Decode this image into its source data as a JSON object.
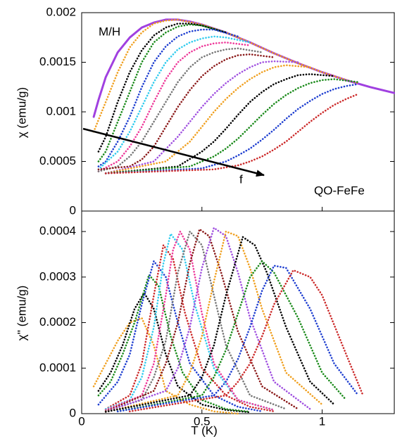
{
  "chart_data": [
    {
      "type": "line",
      "y_label": "χ (emu/g)",
      "annotations": [
        "M/H",
        "QO-FeFe",
        "f"
      ],
      "xlim": [
        0,
        1.3
      ],
      "ylim": [
        0,
        0.002
      ],
      "yticks": [
        0,
        0.0005,
        0.001,
        0.0015,
        0.002
      ],
      "series": [
        {
          "color": "#a040e0",
          "style": "solid",
          "x": [
            0.05,
            0.07,
            0.1,
            0.15,
            0.2,
            0.25,
            0.3,
            0.35,
            0.4,
            0.45,
            0.5,
            0.6,
            0.7,
            0.8,
            0.9,
            1.0,
            1.1,
            1.2,
            1.3
          ],
          "values": [
            0.00095,
            0.00112,
            0.00135,
            0.0016,
            0.00175,
            0.00185,
            0.0019,
            0.00193,
            0.00193,
            0.00191,
            0.00188,
            0.0018,
            0.0017,
            0.00159,
            0.00149,
            0.0014,
            0.00132,
            0.00125,
            0.00119
          ]
        },
        {
          "color": "#f0a020",
          "x": [
            0.05,
            0.1,
            0.15,
            0.2,
            0.25,
            0.3,
            0.35,
            0.4,
            0.5,
            0.6,
            0.7,
            0.8,
            0.9,
            1.0,
            1.1,
            1.15
          ],
          "values": [
            0.0008,
            0.0011,
            0.0014,
            0.00165,
            0.0018,
            0.00189,
            0.00192,
            0.00193,
            0.00188,
            0.0018,
            0.0017,
            0.00159,
            0.00149,
            0.0014,
            0.00132,
            0.00129
          ]
        },
        {
          "color": "#000000",
          "x": [
            0.07,
            0.1,
            0.15,
            0.2,
            0.25,
            0.3,
            0.35,
            0.4,
            0.45,
            0.5,
            0.6
          ],
          "values": [
            0.0006,
            0.00075,
            0.0011,
            0.0014,
            0.00162,
            0.00177,
            0.00185,
            0.00189,
            0.00189,
            0.00187,
            0.0018
          ]
        },
        {
          "color": "#1a8a1a",
          "x": [
            0.07,
            0.1,
            0.15,
            0.2,
            0.25,
            0.3,
            0.35,
            0.4,
            0.45,
            0.5,
            0.6
          ],
          "values": [
            0.0005,
            0.0006,
            0.0009,
            0.0012,
            0.0015,
            0.0017,
            0.0018,
            0.00186,
            0.00188,
            0.00187,
            0.0018
          ]
        },
        {
          "color": "#1f3fd0",
          "x": [
            0.07,
            0.1,
            0.15,
            0.2,
            0.25,
            0.3,
            0.35,
            0.4,
            0.45,
            0.5,
            0.55,
            0.65
          ],
          "values": [
            0.00045,
            0.0005,
            0.0007,
            0.00095,
            0.00125,
            0.0015,
            0.00166,
            0.00176,
            0.00181,
            0.00183,
            0.00183,
            0.00176
          ]
        },
        {
          "color": "#33ccee",
          "x": [
            0.07,
            0.15,
            0.2,
            0.25,
            0.3,
            0.35,
            0.4,
            0.45,
            0.5,
            0.55,
            0.6,
            0.7
          ],
          "values": [
            0.00042,
            0.0006,
            0.0008,
            0.00105,
            0.0013,
            0.0015,
            0.00163,
            0.0017,
            0.00174,
            0.00176,
            0.00175,
            0.0017
          ]
        },
        {
          "color": "#ee3a9a",
          "x": [
            0.07,
            0.15,
            0.2,
            0.25,
            0.3,
            0.35,
            0.4,
            0.45,
            0.5,
            0.55,
            0.6,
            0.7
          ],
          "values": [
            0.0004,
            0.0005,
            0.00065,
            0.00085,
            0.0011,
            0.00133,
            0.0015,
            0.0016,
            0.00166,
            0.00169,
            0.0017,
            0.00167
          ]
        },
        {
          "color": "#777777",
          "x": [
            0.07,
            0.15,
            0.2,
            0.25,
            0.3,
            0.35,
            0.4,
            0.45,
            0.5,
            0.55,
            0.6,
            0.65,
            0.75
          ],
          "values": [
            0.0004,
            0.00045,
            0.00055,
            0.0007,
            0.0009,
            0.0011,
            0.0013,
            0.00145,
            0.00155,
            0.0016,
            0.00163,
            0.00164,
            0.0016
          ]
        },
        {
          "color": "#8b1a1a",
          "x": [
            0.07,
            0.2,
            0.25,
            0.3,
            0.35,
            0.4,
            0.45,
            0.5,
            0.55,
            0.6,
            0.65,
            0.7,
            0.8
          ],
          "values": [
            0.00042,
            0.00045,
            0.00052,
            0.00065,
            0.00085,
            0.00105,
            0.00122,
            0.00136,
            0.00146,
            0.00153,
            0.00157,
            0.00158,
            0.00155
          ]
        },
        {
          "color": "#a050e0",
          "x": [
            0.1,
            0.3,
            0.4,
            0.45,
            0.5,
            0.55,
            0.6,
            0.65,
            0.7,
            0.75,
            0.8,
            0.9
          ],
          "values": [
            0.00038,
            0.0005,
            0.00075,
            0.0009,
            0.00105,
            0.00118,
            0.00129,
            0.00138,
            0.00145,
            0.0015,
            0.00151,
            0.0015
          ]
        },
        {
          "color": "#f0a020",
          "x": [
            0.1,
            0.35,
            0.45,
            0.5,
            0.55,
            0.6,
            0.65,
            0.7,
            0.75,
            0.8,
            0.85,
            0.95
          ],
          "values": [
            0.00038,
            0.0005,
            0.0007,
            0.00085,
            0.001,
            0.00113,
            0.00124,
            0.00133,
            0.0014,
            0.00145,
            0.00147,
            0.00145
          ]
        },
        {
          "color": "#000000",
          "x": [
            0.1,
            0.4,
            0.5,
            0.55,
            0.6,
            0.65,
            0.7,
            0.75,
            0.8,
            0.85,
            0.9,
            0.95,
            1.05
          ],
          "values": [
            0.00038,
            0.00045,
            0.0006,
            0.0007,
            0.00083,
            0.00097,
            0.0011,
            0.0012,
            0.00128,
            0.00133,
            0.00137,
            0.00138,
            0.00136
          ]
        },
        {
          "color": "#1a8a1a",
          "x": [
            0.1,
            0.45,
            0.55,
            0.6,
            0.65,
            0.7,
            0.75,
            0.8,
            0.85,
            0.9,
            0.95,
            1.0,
            1.05,
            1.15
          ],
          "values": [
            0.00038,
            0.00045,
            0.00055,
            0.00063,
            0.00073,
            0.00085,
            0.00097,
            0.00108,
            0.00117,
            0.00124,
            0.00129,
            0.00132,
            0.00133,
            0.0013
          ]
        },
        {
          "color": "#1f3fd0",
          "x": [
            0.1,
            0.5,
            0.6,
            0.65,
            0.7,
            0.75,
            0.8,
            0.85,
            0.9,
            0.95,
            1.0,
            1.05,
            1.1,
            1.15
          ],
          "values": [
            0.00038,
            0.00043,
            0.0005,
            0.00056,
            0.00063,
            0.00072,
            0.00082,
            0.00093,
            0.00103,
            0.00111,
            0.00118,
            0.00123,
            0.00126,
            0.00128
          ]
        },
        {
          "color": "#cc2a2a",
          "x": [
            0.1,
            0.55,
            0.65,
            0.7,
            0.75,
            0.8,
            0.85,
            0.9,
            0.95,
            1.0,
            1.05,
            1.1,
            1.15
          ],
          "values": [
            0.00038,
            0.00042,
            0.00046,
            0.0005,
            0.00055,
            0.00062,
            0.0007,
            0.0008,
            0.0009,
            0.00099,
            0.00107,
            0.00113,
            0.00118
          ]
        }
      ]
    },
    {
      "type": "line",
      "x_label": "T (K)",
      "y_label": "χ'' (emu/g)",
      "xlim": [
        0,
        1.3
      ],
      "xticks": [
        0,
        0.5,
        1
      ],
      "ylim": [
        0,
        0.000445
      ],
      "yticks": [
        0,
        0.0001,
        0.0002,
        0.0003,
        0.0004
      ],
      "series": [
        {
          "color": "#f0a020",
          "x": [
            0.05,
            0.1,
            0.15,
            0.2,
            0.25,
            0.3,
            0.35,
            0.45,
            0.55,
            0.65
          ],
          "values": [
            6e-05,
            0.00011,
            0.00016,
            0.0002,
            0.00021,
            0.00015,
            5e-05,
            2e-05,
            5e-06,
            0
          ]
        },
        {
          "color": "#000000",
          "x": [
            0.07,
            0.12,
            0.17,
            0.22,
            0.26,
            0.3,
            0.35,
            0.4,
            0.5,
            0.6,
            0.7
          ],
          "values": [
            5e-05,
            9e-05,
            0.00015,
            0.00023,
            0.000265,
            0.00023,
            0.00013,
            6e-05,
            2e-05,
            8e-06,
            3e-06
          ]
        },
        {
          "color": "#1a8a1a",
          "x": [
            0.07,
            0.12,
            0.17,
            0.22,
            0.28,
            0.32,
            0.37,
            0.42,
            0.5,
            0.6,
            0.7
          ],
          "values": [
            4e-05,
            7e-05,
            0.00013,
            0.0002,
            0.000305,
            0.00028,
            0.00017,
            9e-05,
            3e-05,
            1e-05,
            4e-06
          ]
        },
        {
          "color": "#1f3fd0",
          "x": [
            0.07,
            0.15,
            0.2,
            0.25,
            0.3,
            0.35,
            0.4,
            0.45,
            0.55,
            0.65,
            0.75
          ],
          "values": [
            2e-05,
            7e-05,
            0.00013,
            0.00024,
            0.000335,
            0.0003,
            0.0002,
            0.00011,
            4e-05,
            1.5e-05,
            5e-06
          ]
        },
        {
          "color": "#cc2a2a",
          "x": [
            0.1,
            0.2,
            0.25,
            0.3,
            0.34,
            0.38,
            0.43,
            0.5,
            0.6,
            0.7,
            0.8
          ],
          "values": [
            1e-05,
            4e-05,
            0.00011,
            0.00026,
            0.00037,
            0.00034,
            0.00022,
            0.0001,
            4e-05,
            1.5e-05,
            5e-06
          ]
        },
        {
          "color": "#33ccee",
          "x": [
            0.1,
            0.2,
            0.25,
            0.3,
            0.34,
            0.37,
            0.42,
            0.47,
            0.55,
            0.65,
            0.8
          ],
          "values": [
            1e-05,
            3e-05,
            8e-05,
            0.00019,
            0.00033,
            0.000395,
            0.00036,
            0.00024,
            0.0001,
            3e-05,
            8e-06
          ]
        },
        {
          "color": "#ee3a9a",
          "x": [
            0.1,
            0.25,
            0.3,
            0.35,
            0.38,
            0.41,
            0.45,
            0.5,
            0.55,
            0.65,
            0.8
          ],
          "values": [
            8e-06,
            4e-05,
            0.00011,
            0.00026,
            0.00036,
            0.0004,
            0.00036,
            0.00022,
            0.00011,
            3e-05,
            8e-06
          ]
        },
        {
          "color": "#777777",
          "x": [
            0.1,
            0.25,
            0.3,
            0.35,
            0.4,
            0.45,
            0.5,
            0.55,
            0.6,
            0.7,
            0.85
          ],
          "values": [
            6e-06,
            3e-05,
            8e-05,
            0.00016,
            0.00031,
            0.0004,
            0.00037,
            0.00026,
            0.00015,
            4e-05,
            1e-05
          ]
        },
        {
          "color": "#8b1a1a",
          "x": [
            0.1,
            0.3,
            0.35,
            0.4,
            0.45,
            0.49,
            0.53,
            0.58,
            0.65,
            0.75,
            0.9
          ],
          "values": [
            5e-06,
            5e-05,
            0.00011,
            0.0002,
            0.00033,
            0.000405,
            0.00039,
            0.00031,
            0.00018,
            6e-05,
            1e-05
          ]
        },
        {
          "color": "#a050e0",
          "x": [
            0.1,
            0.35,
            0.4,
            0.45,
            0.5,
            0.55,
            0.6,
            0.65,
            0.7,
            0.8,
            0.95
          ],
          "values": [
            4e-06,
            5e-05,
            0.0001,
            0.00019,
            0.00032,
            0.000408,
            0.00039,
            0.00031,
            0.00021,
            7e-05,
            1e-05
          ]
        },
        {
          "color": "#f0a020",
          "x": [
            0.1,
            0.4,
            0.45,
            0.5,
            0.55,
            0.6,
            0.65,
            0.7,
            0.75,
            0.85,
            1.0
          ],
          "values": [
            4e-06,
            4e-05,
            9e-05,
            0.00017,
            0.00029,
            0.0004,
            0.00039,
            0.00032,
            0.00023,
            9e-05,
            2e-05
          ]
        },
        {
          "color": "#000000",
          "x": [
            0.1,
            0.45,
            0.5,
            0.55,
            0.6,
            0.67,
            0.72,
            0.77,
            0.85,
            0.95,
            1.05
          ],
          "values": [
            4e-06,
            4e-05,
            8e-05,
            0.00015,
            0.00026,
            0.000388,
            0.00037,
            0.00031,
            0.00019,
            7e-05,
            2e-05
          ]
        },
        {
          "color": "#1a8a1a",
          "x": [
            0.15,
            0.5,
            0.55,
            0.6,
            0.65,
            0.7,
            0.75,
            0.8,
            0.9,
            1.0,
            1.1
          ],
          "values": [
            5e-06,
            4e-05,
            8e-05,
            0.00014,
            0.00022,
            0.0003,
            0.000335,
            0.00031,
            0.00021,
            9e-05,
            3e-05
          ]
        },
        {
          "color": "#1f3fd0",
          "x": [
            0.15,
            0.55,
            0.6,
            0.65,
            0.7,
            0.75,
            0.8,
            0.85,
            0.95,
            1.05,
            1.15
          ],
          "values": [
            5e-06,
            4e-05,
            7e-05,
            0.00012,
            0.00019,
            0.00027,
            0.000325,
            0.00032,
            0.00023,
            0.00011,
            4e-05
          ]
        },
        {
          "color": "#cc2a2a",
          "x": [
            0.2,
            0.6,
            0.65,
            0.7,
            0.75,
            0.8,
            0.88,
            0.95,
            1.0,
            1.1,
            1.17
          ],
          "values": [
            5e-06,
            4e-05,
            7e-05,
            0.00011,
            0.00017,
            0.00024,
            0.000315,
            0.0003,
            0.00026,
            0.00013,
            4e-05
          ]
        }
      ]
    }
  ]
}
